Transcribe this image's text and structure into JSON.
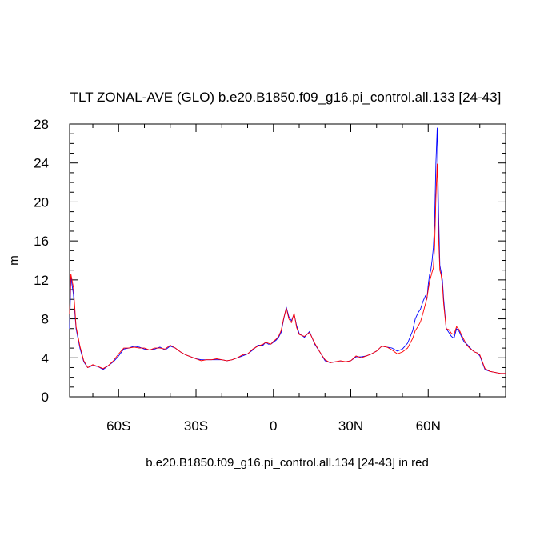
{
  "chart_data": {
    "type": "line",
    "title": "TLT ZONAL-AVE (GLO) b.e20.B1850.f09_g16.pi_control.all.133 [24-43]",
    "xlabel": "b.e20.B1850.f09_g16.pi_control.all.134 [24-43] in red",
    "ylabel": "m",
    "xlim": [
      -79,
      90
    ],
    "ylim": [
      0,
      28
    ],
    "x_ticks": [
      {
        "value": -60,
        "label": "60S"
      },
      {
        "value": -30,
        "label": "30S"
      },
      {
        "value": 0,
        "label": "0"
      },
      {
        "value": 30,
        "label": "30N"
      },
      {
        "value": 60,
        "label": "60N"
      }
    ],
    "y_ticks": [
      {
        "value": 0,
        "label": "0"
      },
      {
        "value": 4,
        "label": "4"
      },
      {
        "value": 8,
        "label": "8"
      },
      {
        "value": 12,
        "label": "12"
      },
      {
        "value": 16,
        "label": "16"
      },
      {
        "value": 20,
        "label": "20"
      },
      {
        "value": 24,
        "label": "24"
      },
      {
        "value": 28,
        "label": "28"
      }
    ],
    "grid": false,
    "series": [
      {
        "color": "#0000ff",
        "x": [
          -79,
          -78.5,
          -77.5,
          -76.5,
          -75,
          -73.5,
          -72,
          -70,
          -68,
          -66,
          -64,
          -62,
          -60,
          -58,
          -56,
          -54,
          -52,
          -50,
          -48,
          -46,
          -44,
          -42,
          -40,
          -38,
          -36,
          -34,
          -32,
          -30,
          -28,
          -26,
          -24,
          -22,
          -20,
          -18,
          -16,
          -14,
          -12,
          -10,
          -8,
          -6,
          -4,
          -3,
          -2,
          -1,
          0,
          1,
          2,
          3,
          4,
          5,
          6,
          7,
          8,
          9,
          10,
          12,
          14,
          16,
          18,
          20,
          22,
          24,
          26,
          28,
          30,
          32,
          34,
          36,
          38,
          40,
          42,
          44,
          46,
          48,
          50,
          52,
          54,
          55,
          56,
          57,
          58,
          59,
          59.5,
          60,
          60.5,
          61,
          61.5,
          62,
          62.5,
          63,
          63.5,
          64,
          64.5,
          65,
          65.5,
          66,
          67,
          68,
          69,
          70,
          71,
          72,
          73,
          74,
          75,
          76,
          77,
          78,
          79,
          80,
          82,
          84,
          86,
          88,
          90
        ],
        "y": [
          7.0,
          12.3,
          10.5,
          7.0,
          5.0,
          3.6,
          3.0,
          3.2,
          3.1,
          2.8,
          3.2,
          3.6,
          4.2,
          4.9,
          5.0,
          5.2,
          5.1,
          4.9,
          4.8,
          4.9,
          5.1,
          4.8,
          5.2,
          5.0,
          4.6,
          4.3,
          4.1,
          3.9,
          3.8,
          3.8,
          3.8,
          3.8,
          3.8,
          3.7,
          3.8,
          4.0,
          4.2,
          4.4,
          4.8,
          5.3,
          5.3,
          5.6,
          5.4,
          5.4,
          5.6,
          5.8,
          6.1,
          6.6,
          8.0,
          9.2,
          8.2,
          7.8,
          8.5,
          7.3,
          6.5,
          6.1,
          6.7,
          5.4,
          4.6,
          3.7,
          3.5,
          3.6,
          3.6,
          3.6,
          3.7,
          4.1,
          4.1,
          4.2,
          4.4,
          4.7,
          5.2,
          5.1,
          5.0,
          4.7,
          4.9,
          5.5,
          6.8,
          8.0,
          8.6,
          9.0,
          9.8,
          10.4,
          10.0,
          11.5,
          12.5,
          13.0,
          14.0,
          15.3,
          18.0,
          24.0,
          27.6,
          19.0,
          13.5,
          12.8,
          12.0,
          10.0,
          7.0,
          6.6,
          6.2,
          6.0,
          7.0,
          6.7,
          6.1,
          5.6,
          5.4,
          5.1,
          4.8,
          4.6,
          4.5,
          4.2,
          2.8,
          2.6,
          2.5,
          2.4,
          2.4
        ]
      },
      {
        "color": "#ff0000",
        "x": [
          -79,
          -78.5,
          -77.5,
          -76.5,
          -75,
          -73.5,
          -72,
          -70,
          -68,
          -66,
          -64,
          -62,
          -60,
          -58,
          -56,
          -54,
          -52,
          -50,
          -48,
          -46,
          -44,
          -42,
          -40,
          -38,
          -36,
          -34,
          -32,
          -30,
          -28,
          -26,
          -24,
          -22,
          -20,
          -18,
          -16,
          -14,
          -12,
          -10,
          -8,
          -6,
          -4,
          -3,
          -2,
          -1,
          0,
          1,
          2,
          3,
          4,
          5,
          6,
          7,
          8,
          9,
          10,
          12,
          14,
          16,
          18,
          20,
          22,
          24,
          26,
          28,
          30,
          32,
          34,
          36,
          38,
          40,
          42,
          44,
          46,
          48,
          50,
          52,
          54,
          55,
          56,
          57,
          58,
          59,
          59.5,
          60,
          60.5,
          61,
          61.5,
          62,
          62.5,
          63,
          63.5,
          64,
          64.5,
          65,
          65.5,
          66,
          67,
          68,
          69,
          70,
          71,
          72,
          73,
          74,
          75,
          76,
          77,
          78,
          79,
          80,
          82,
          84,
          86,
          88,
          90
        ],
        "y": [
          8.5,
          12.6,
          11.2,
          7.2,
          5.2,
          3.7,
          3.0,
          3.3,
          3.1,
          2.9,
          3.2,
          3.7,
          4.4,
          5.0,
          5.0,
          5.1,
          5.0,
          5.0,
          4.8,
          5.0,
          5.0,
          4.9,
          5.3,
          5.0,
          4.6,
          4.3,
          4.1,
          3.9,
          3.7,
          3.8,
          3.8,
          3.9,
          3.8,
          3.7,
          3.8,
          4.0,
          4.3,
          4.4,
          4.9,
          5.2,
          5.4,
          5.6,
          5.5,
          5.4,
          5.7,
          5.9,
          6.2,
          6.8,
          8.1,
          9.1,
          8.0,
          7.6,
          8.6,
          7.1,
          6.4,
          6.2,
          6.6,
          5.5,
          4.6,
          3.8,
          3.5,
          3.6,
          3.7,
          3.6,
          3.7,
          4.2,
          4.0,
          4.2,
          4.4,
          4.7,
          5.2,
          5.1,
          4.8,
          4.4,
          4.6,
          5.0,
          6.0,
          6.8,
          7.2,
          7.7,
          8.6,
          9.6,
          10.1,
          11.0,
          11.8,
          12.3,
          12.8,
          13.2,
          15.5,
          20.5,
          23.9,
          16.5,
          13.0,
          12.5,
          11.5,
          9.5,
          7.0,
          6.9,
          6.5,
          6.4,
          7.2,
          6.9,
          6.3,
          5.8,
          5.3,
          5.0,
          4.8,
          4.6,
          4.5,
          4.3,
          2.9,
          2.6,
          2.5,
          2.4,
          2.4
        ]
      }
    ]
  }
}
